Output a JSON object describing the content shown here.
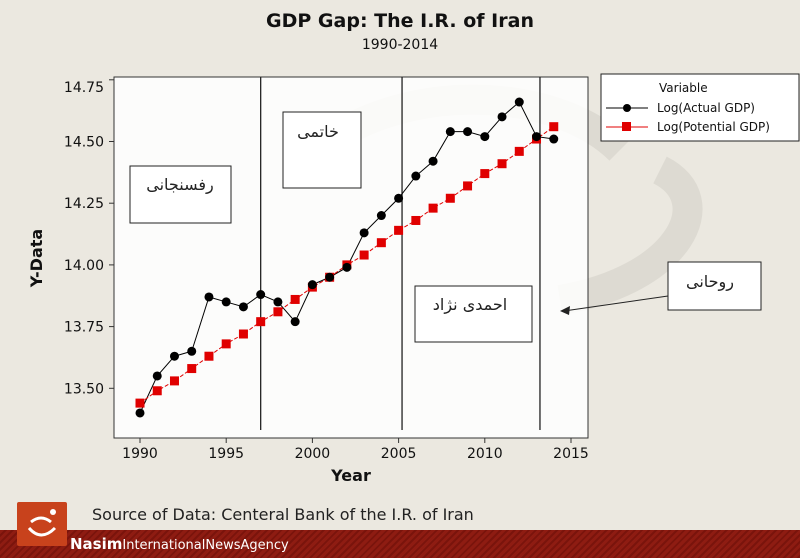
{
  "chart_data": {
    "type": "line",
    "title": "GDP Gap: The I.R. of Iran",
    "subtitle": "1990-2014",
    "xlabel": "Year",
    "ylabel": "Y-Data",
    "xlim": [
      1988.6,
      2015.6
    ],
    "ylim": [
      13.4,
      14.75
    ],
    "xticks": [
      1990,
      1995,
      2000,
      2005,
      2010,
      2015
    ],
    "yticks": [
      "13.50",
      "13.75",
      "14.00",
      "14.25",
      "14.50",
      "14.75"
    ],
    "x": [
      1990,
      1991,
      1992,
      1993,
      1994,
      1995,
      1996,
      1997,
      1998,
      1999,
      2000,
      2001,
      2002,
      2003,
      2004,
      2005,
      2006,
      2007,
      2008,
      2009,
      2010,
      2011,
      2012,
      2013,
      2014
    ],
    "series": [
      {
        "name": "Log(Actual GDP)",
        "color": "#000000",
        "marker": "circle",
        "values": [
          13.4,
          13.55,
          13.63,
          13.65,
          13.87,
          13.85,
          13.83,
          13.88,
          13.85,
          13.77,
          13.92,
          13.95,
          13.99,
          14.13,
          14.2,
          14.27,
          14.36,
          14.42,
          14.54,
          14.54,
          14.52,
          14.6,
          14.66,
          14.52,
          14.51
        ]
      },
      {
        "name": "Log(Potential GDP)",
        "color": "#e00000",
        "marker": "square",
        "values": [
          13.44,
          13.49,
          13.53,
          13.58,
          13.63,
          13.68,
          13.72,
          13.77,
          13.81,
          13.86,
          13.91,
          13.95,
          14.0,
          14.04,
          14.09,
          14.14,
          14.18,
          14.23,
          14.27,
          14.32,
          14.37,
          14.41,
          14.46,
          14.51,
          14.56
        ]
      }
    ],
    "legend_title": "Variable",
    "legend": "top-right",
    "reference_lines_x": [
      1997,
      2005.2,
      2013.2
    ],
    "annotations": [
      "رفسنجانی",
      "خاتمی",
      "احمدی نژاد",
      "روحانی"
    ]
  },
  "source": "Source of Data: Centeral Bank of the I.R. of Iran",
  "brand": {
    "name": "Nasim",
    "tagline": "InternationalNewsAgency"
  }
}
